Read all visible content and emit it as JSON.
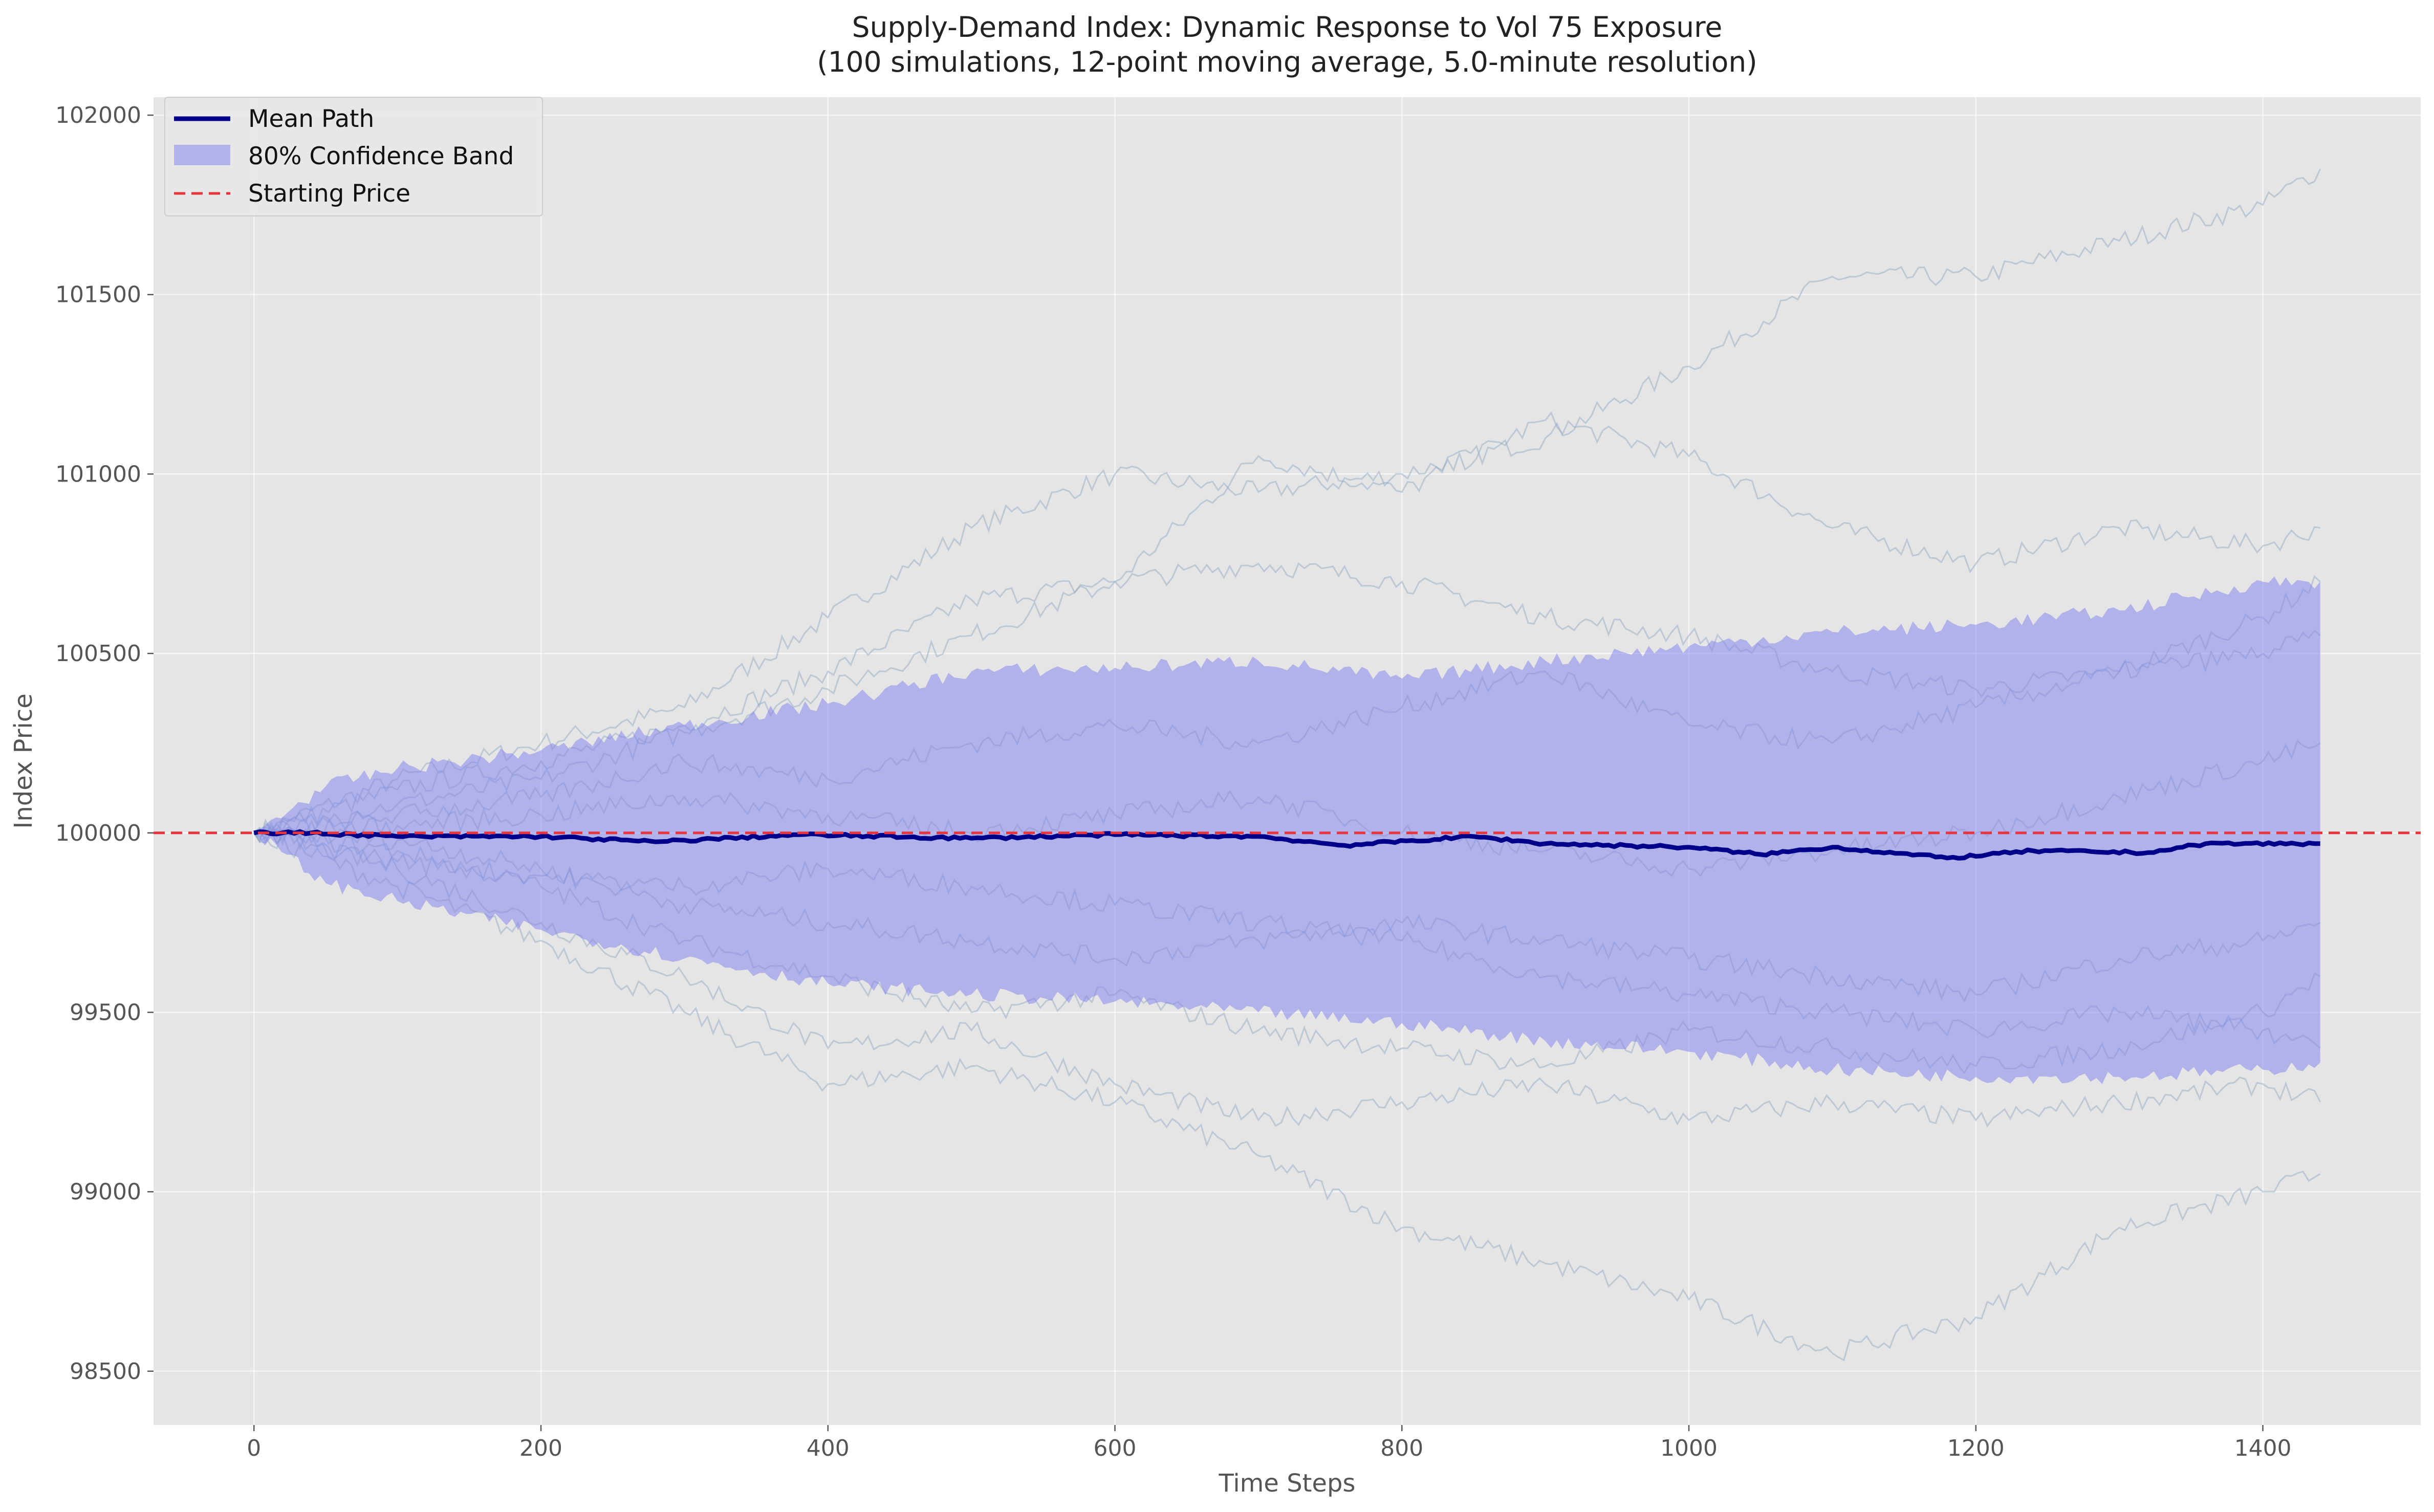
{
  "chart_data": {
    "type": "line",
    "title": "Supply-Demand Index: Dynamic Response to Vol 75 Exposure",
    "subtitle": "(100 simulations, 12-point moving average, 5.0-minute resolution)",
    "xlabel": "Time Steps",
    "ylabel": "Index Price",
    "xlim": [
      -70,
      1510
    ],
    "ylim": [
      98350,
      102050
    ],
    "x_ticks": [
      0,
      200,
      400,
      600,
      800,
      1000,
      1200,
      1400
    ],
    "y_ticks": [
      98500,
      99000,
      99500,
      100000,
      100500,
      101000,
      101500,
      102000
    ],
    "grid": true,
    "legend_position": "top-left",
    "legend": [
      {
        "label": "Mean Path",
        "kind": "line"
      },
      {
        "label": "80% Confidence Band",
        "kind": "band"
      },
      {
        "label": "Starting Price",
        "kind": "dashed"
      }
    ],
    "colors": {
      "mean": "#00008b",
      "band": "#8080f0",
      "reference": "#e8343a",
      "paths": "#8aa4c0",
      "background": "#e5e5e5"
    },
    "reference_line": {
      "name": "Starting Price",
      "y": 100000
    },
    "series": [
      {
        "name": "Mean Path",
        "x": [
          0,
          40,
          100,
          200,
          280,
          380,
          500,
          600,
          700,
          760,
          850,
          900,
          1000,
          1050,
          1100,
          1180,
          1240,
          1320,
          1360,
          1440
        ],
        "y": [
          100000,
          100000,
          99990,
          99990,
          99975,
          99995,
          99985,
          99995,
          99990,
          99965,
          99990,
          99970,
          99960,
          99940,
          99960,
          99930,
          99950,
          99945,
          99970,
          99970
        ]
      },
      {
        "name": "80% Confidence Band",
        "x": [
          0,
          50,
          100,
          200,
          300,
          400,
          500,
          600,
          700,
          800,
          900,
          1000,
          1100,
          1200,
          1300,
          1400,
          1440
        ],
        "upper": [
          100000,
          100130,
          100180,
          100230,
          100300,
          100360,
          100450,
          100460,
          100480,
          100430,
          100480,
          100520,
          100560,
          100580,
          100620,
          100700,
          100700
        ],
        "lower": [
          100000,
          99860,
          99810,
          99730,
          99650,
          99580,
          99550,
          99530,
          99500,
          99470,
          99420,
          99390,
          99340,
          99320,
          99320,
          99340,
          99360
        ]
      }
    ],
    "background_paths": [
      {
        "x": [
          0,
          100,
          200,
          300,
          400,
          500,
          600,
          700,
          800,
          900,
          1000,
          1100,
          1200,
          1300,
          1400,
          1440
        ],
        "y": [
          100000,
          100150,
          100250,
          100350,
          100600,
          100850,
          101000,
          100950,
          101000,
          101100,
          101300,
          101550,
          101550,
          101650,
          101750,
          101850
        ]
      },
      {
        "x": [
          0,
          100,
          200,
          300,
          400,
          500,
          600,
          700,
          800,
          900,
          1000,
          1100,
          1200,
          1300,
          1400,
          1440
        ],
        "y": [
          100000,
          100120,
          100200,
          100300,
          100450,
          100650,
          100700,
          101050,
          100950,
          101150,
          101050,
          100850,
          100750,
          100850,
          100800,
          100850
        ]
      },
      {
        "x": [
          0,
          100,
          200,
          300,
          400,
          500,
          600,
          700,
          800,
          900,
          1000,
          1100,
          1200,
          1300,
          1400,
          1440
        ],
        "y": [
          100000,
          100080,
          100150,
          100280,
          100400,
          100550,
          100700,
          100750,
          100700,
          100600,
          100550,
          100450,
          100400,
          100450,
          100600,
          100700
        ]
      },
      {
        "x": [
          0,
          100,
          200,
          300,
          400,
          500,
          600,
          700,
          800,
          900,
          1000,
          1100,
          1200,
          1300,
          1400,
          1440
        ],
        "y": [
          100000,
          99850,
          99700,
          99500,
          99300,
          99350,
          99250,
          99100,
          98900,
          98800,
          98700,
          98550,
          98650,
          98900,
          99000,
          99050
        ]
      },
      {
        "x": [
          0,
          100,
          200,
          300,
          400,
          500,
          600,
          700,
          800,
          900,
          1000,
          1100,
          1200,
          1300,
          1400,
          1440
        ],
        "y": [
          100000,
          99900,
          99750,
          99600,
          99400,
          99450,
          99300,
          99200,
          99250,
          99300,
          99200,
          99250,
          99200,
          99250,
          99300,
          99250
        ]
      },
      {
        "x": [
          0,
          100,
          200,
          300,
          400,
          500,
          600,
          700,
          800,
          900,
          1000,
          1100,
          1200,
          1300,
          1400,
          1440
        ],
        "y": [
          100000,
          99950,
          99850,
          99700,
          99600,
          99500,
          99550,
          99450,
          99400,
          99350,
          99450,
          99400,
          99350,
          99400,
          99500,
          99600
        ]
      },
      {
        "x": [
          0,
          100,
          200,
          300,
          400,
          500,
          600,
          700,
          800,
          900,
          1000,
          1100,
          1200,
          1300,
          1400,
          1440
        ],
        "y": [
          100000,
          100050,
          100100,
          100200,
          100150,
          100250,
          100300,
          100250,
          100350,
          100450,
          100300,
          100250,
          100350,
          100450,
          100500,
          100550
        ]
      },
      {
        "x": [
          0,
          100,
          200,
          300,
          400,
          500,
          600,
          700,
          800,
          900,
          1000,
          1100,
          1200,
          1300,
          1400,
          1440
        ],
        "y": [
          100000,
          99980,
          99900,
          99800,
          99750,
          99700,
          99650,
          99700,
          99750,
          99700,
          99650,
          99600,
          99550,
          99650,
          99700,
          99750
        ]
      },
      {
        "x": [
          0,
          100,
          200,
          300,
          400,
          500,
          600,
          700,
          800,
          900,
          1000,
          1100,
          1200,
          1300,
          1400,
          1440
        ],
        "y": [
          100000,
          100020,
          100050,
          100100,
          100050,
          100000,
          100050,
          100100,
          100000,
          99950,
          99900,
          99950,
          100000,
          100100,
          100200,
          100250
        ]
      },
      {
        "x": [
          0,
          100,
          200,
          300,
          400,
          500,
          600,
          700,
          800,
          900,
          1000,
          1100,
          1200,
          1300,
          1400,
          1440
        ],
        "y": [
          100000,
          99920,
          99880,
          99850,
          99900,
          99850,
          99800,
          99750,
          99700,
          99600,
          99550,
          99500,
          99450,
          99500,
          99450,
          99400
        ]
      }
    ]
  }
}
